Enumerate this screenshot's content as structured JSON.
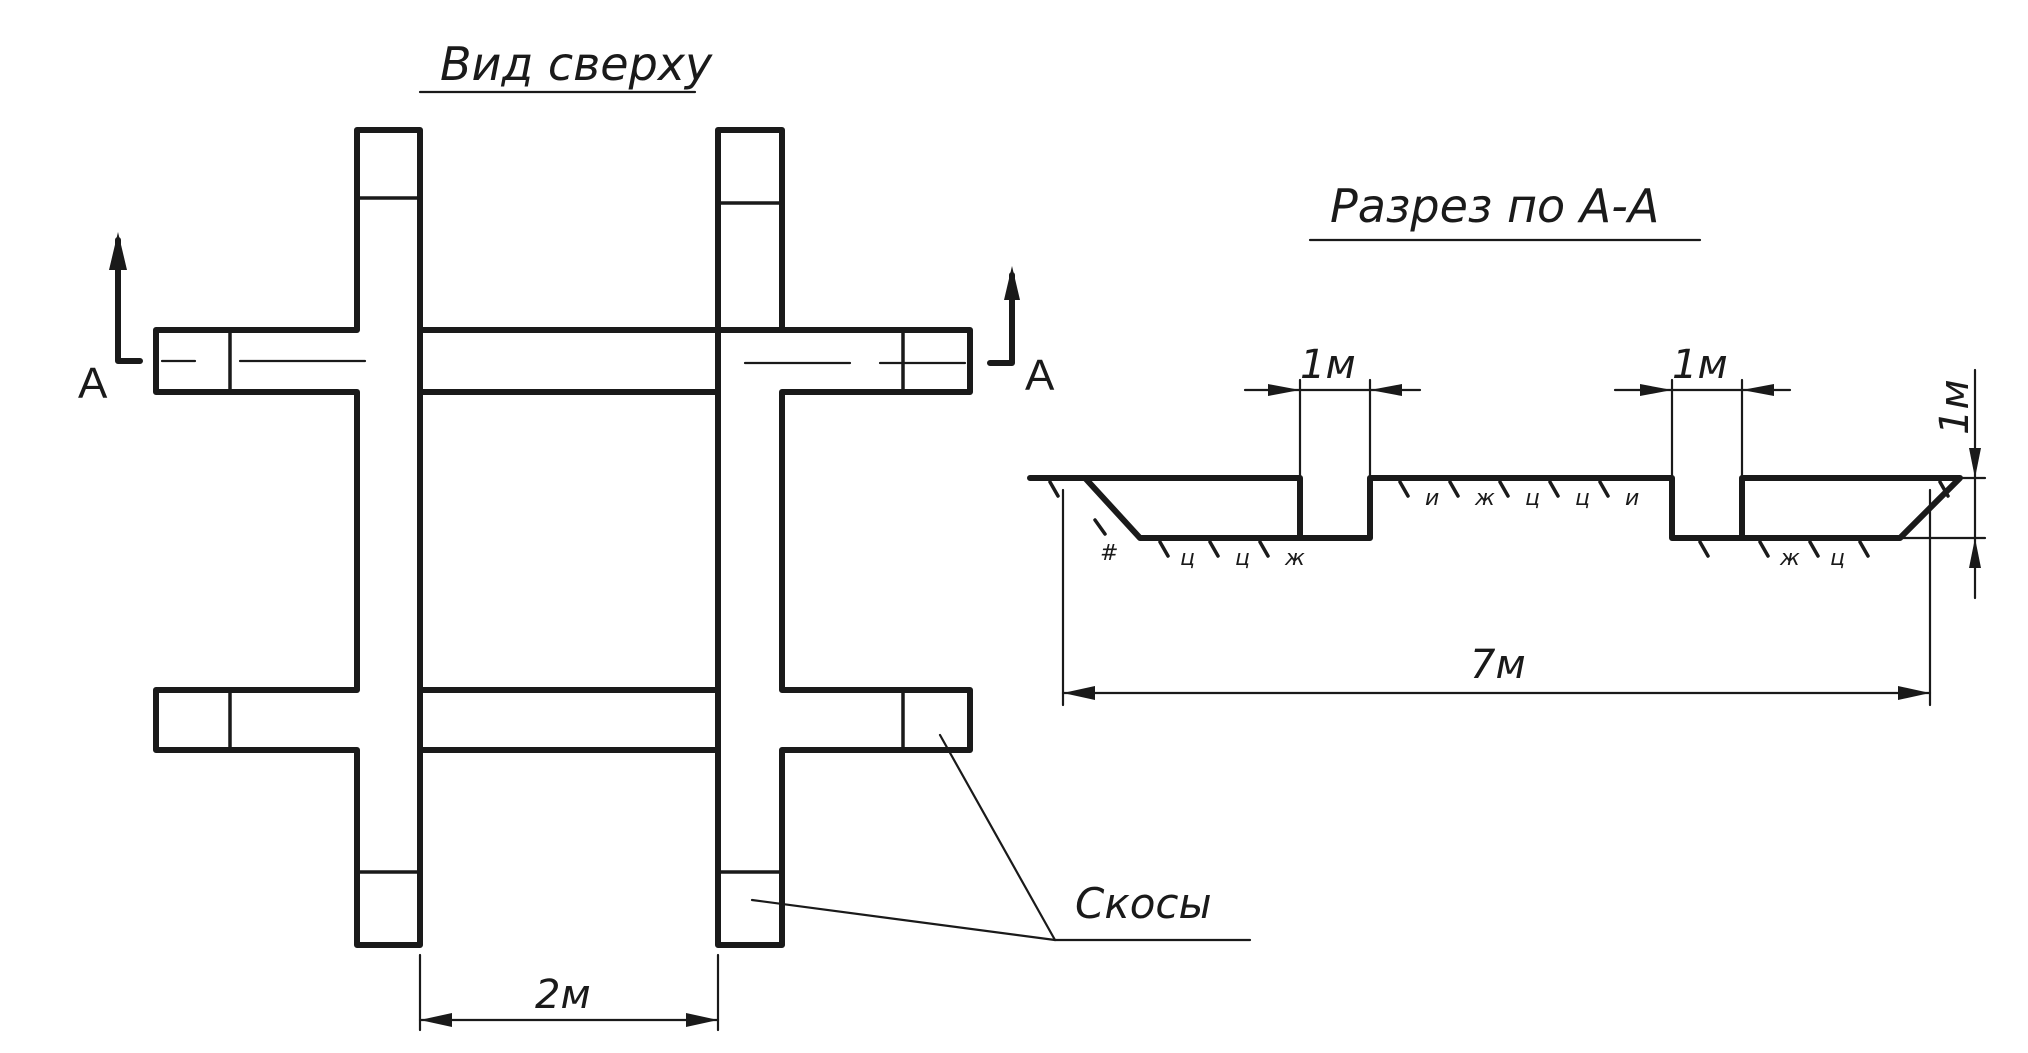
{
  "top_view": {
    "title": "Вид сверху",
    "section_marker": "A",
    "bevel_label": "Скосы",
    "spacing_label": "2м"
  },
  "section": {
    "title": "Разрез по А-А",
    "trench_width_label": "1м",
    "depth_label": "1м",
    "total_width_label": "7м",
    "soil_marks": [
      "#",
      "ц",
      "ц",
      "ж",
      "и",
      "ж",
      "ц",
      "ц",
      "и",
      "ж",
      "ц"
    ]
  }
}
